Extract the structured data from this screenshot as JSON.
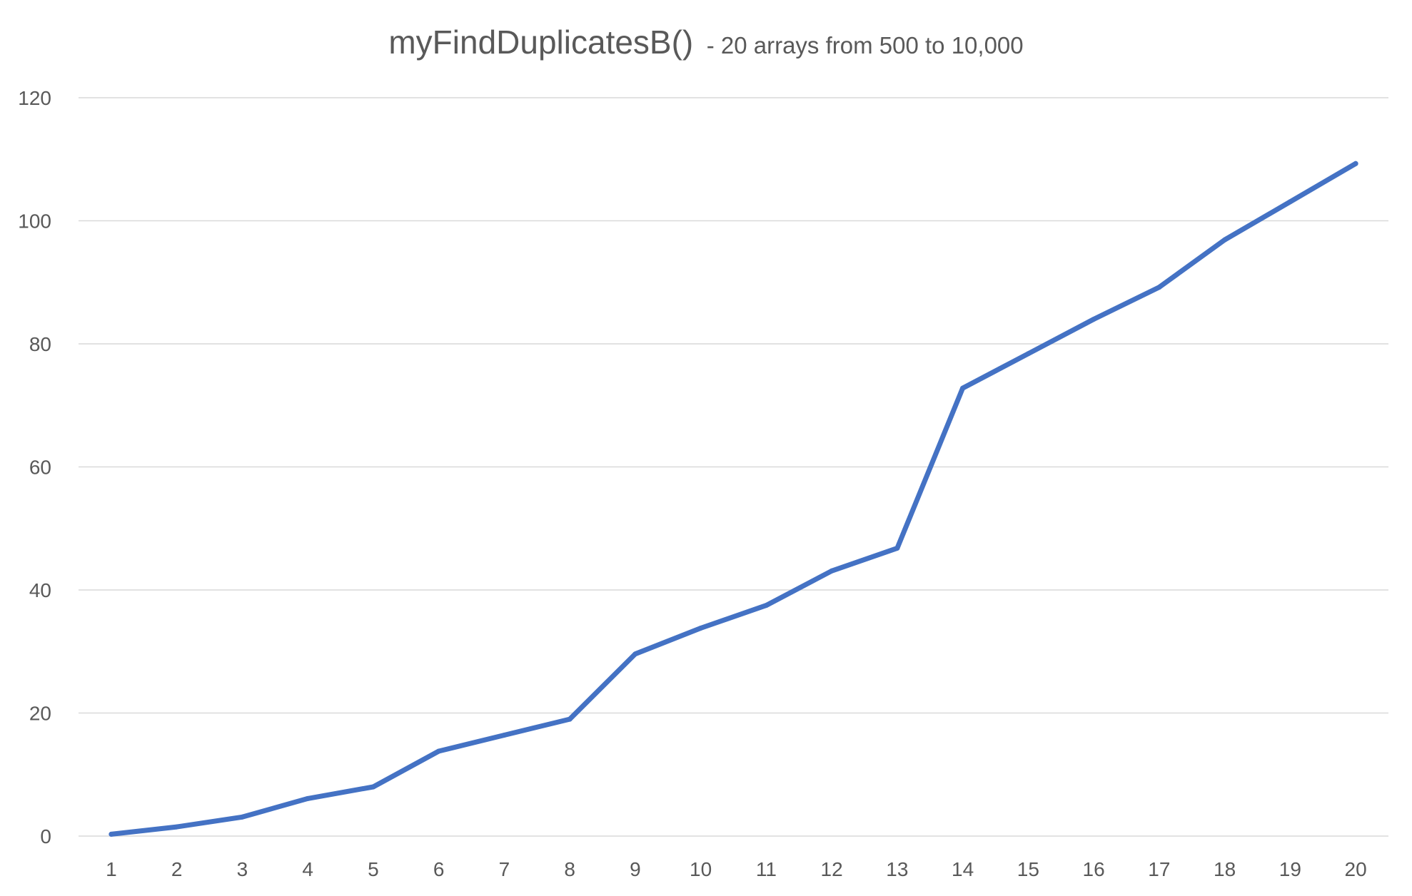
{
  "chart_data": {
    "type": "line",
    "title": "myFindDuplicatesB()",
    "subtitle": "- 20 arrays from 500 to 10,000",
    "xlabel": "",
    "ylabel": "",
    "x": [
      1,
      2,
      3,
      4,
      5,
      6,
      7,
      8,
      9,
      10,
      11,
      12,
      13,
      14,
      15,
      16,
      17,
      18,
      19,
      20
    ],
    "x_tick_labels": [
      "1",
      "2",
      "3",
      "4",
      "5",
      "6",
      "7",
      "8",
      "9",
      "10",
      "11",
      "12",
      "13",
      "14",
      "15",
      "16",
      "17",
      "18",
      "19",
      "20"
    ],
    "y_ticks": [
      0,
      20,
      40,
      60,
      80,
      100,
      120
    ],
    "y_tick_labels": [
      "0",
      "20",
      "40",
      "60",
      "80",
      "100",
      "120"
    ],
    "ylim": [
      0,
      120
    ],
    "grid": true,
    "legend": "none",
    "series": [
      {
        "color": "#4472c4",
        "values": [
          0.3,
          1.5,
          3.1,
          6.1,
          8.0,
          13.8,
          16.4,
          19.0,
          29.6,
          33.8,
          37.5,
          43.1,
          46.8,
          72.8,
          78.4,
          84.0,
          89.2,
          96.9,
          103.1,
          109.3
        ]
      }
    ]
  }
}
